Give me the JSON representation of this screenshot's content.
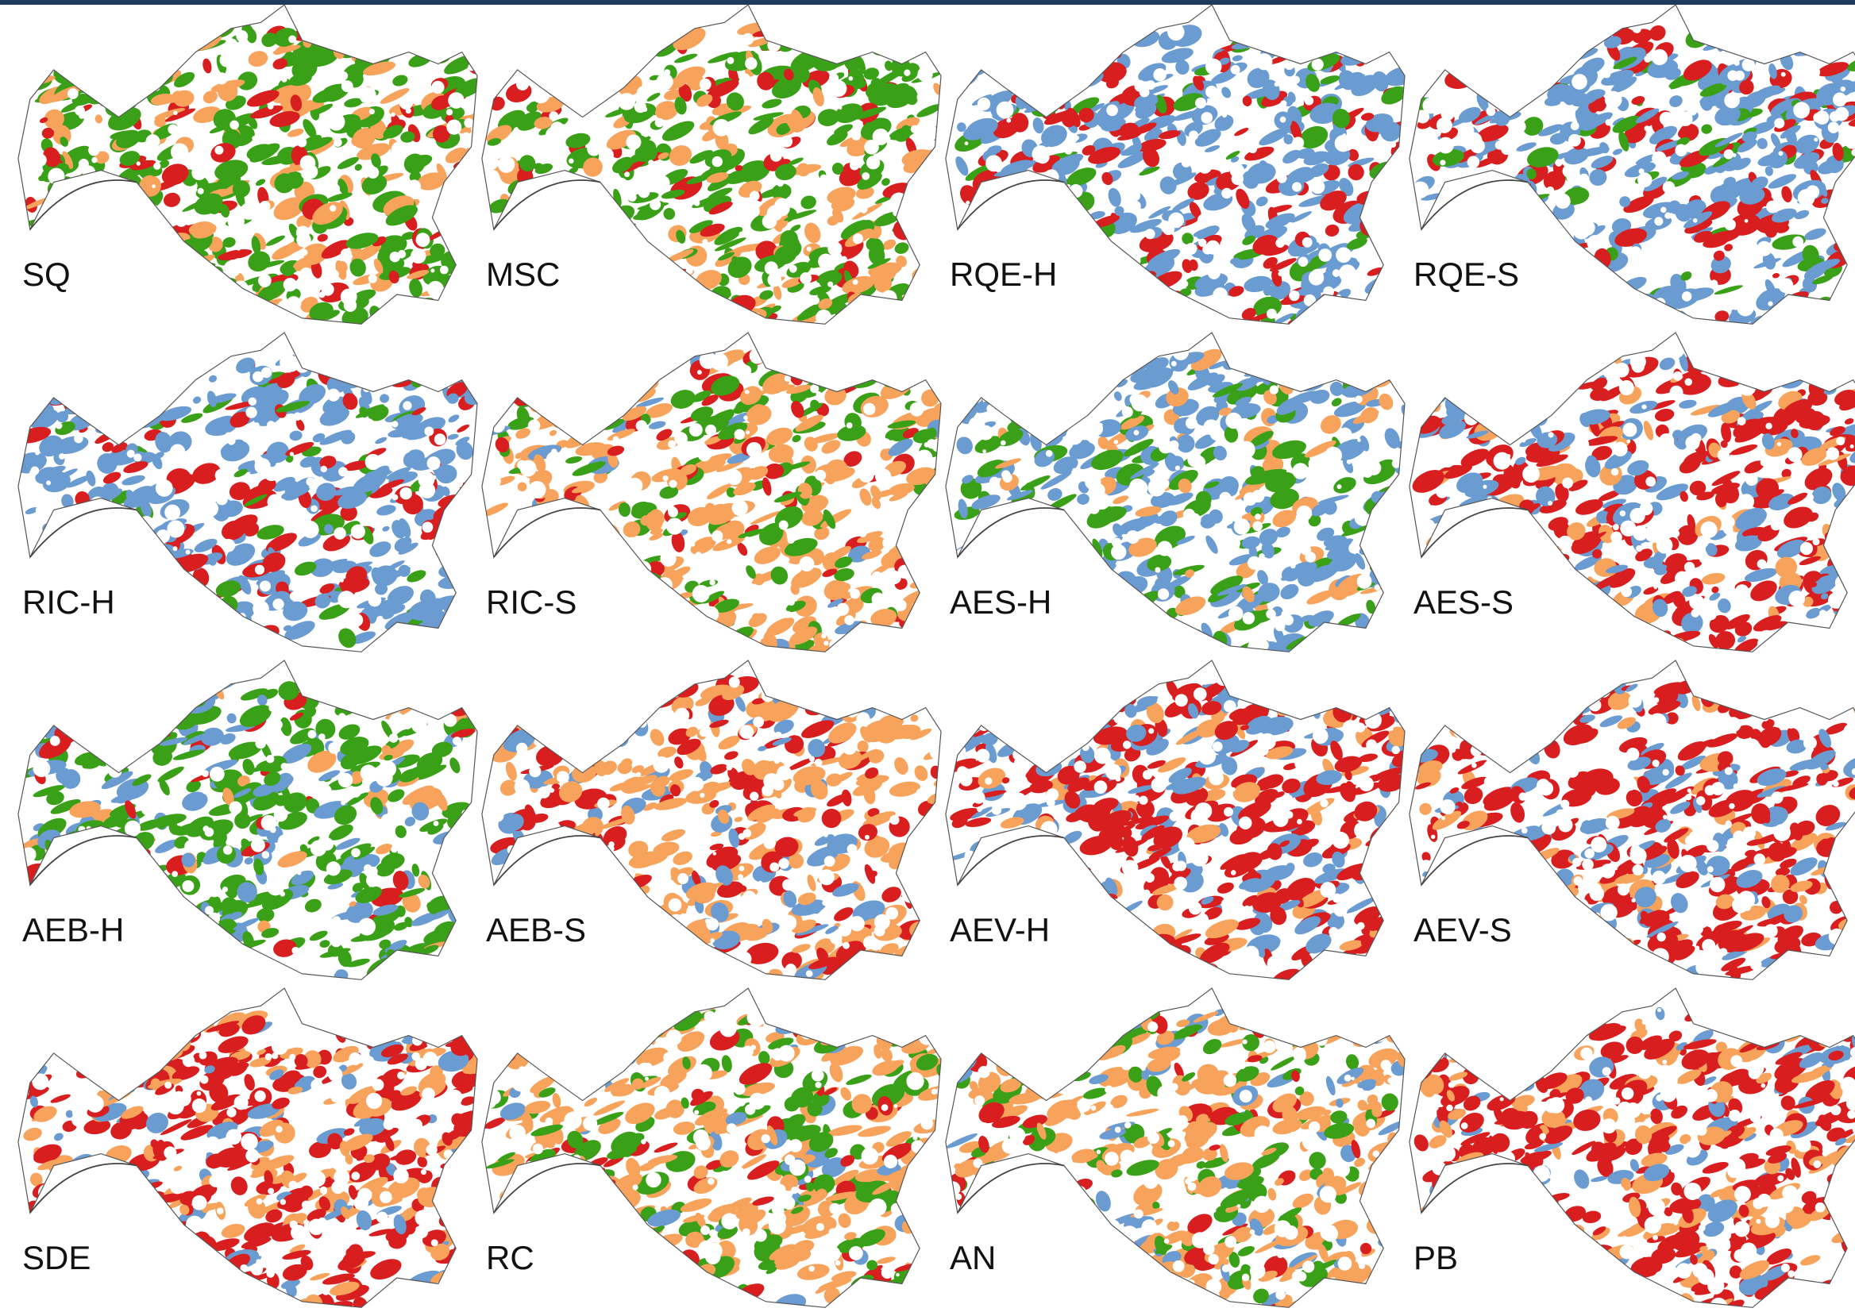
{
  "panels": [
    {
      "label": "SQ",
      "colors": [
        "#3aa017",
        "#f7a35c",
        "#d81e1e"
      ]
    },
    {
      "label": "MSC",
      "colors": [
        "#3aa017",
        "#f7a35c",
        "#d81e1e"
      ]
    },
    {
      "label": "RQE-H",
      "colors": [
        "#6a9bd1",
        "#d81e1e",
        "#3aa017"
      ]
    },
    {
      "label": "RQE-S",
      "colors": [
        "#6a9bd1",
        "#d81e1e",
        "#3aa017"
      ]
    },
    {
      "label": "RIC-H",
      "colors": [
        "#6a9bd1",
        "#d81e1e",
        "#3aa017"
      ]
    },
    {
      "label": "RIC-S",
      "colors": [
        "#f7a35c",
        "#3aa017",
        "#d81e1e",
        "#6a9bd1"
      ]
    },
    {
      "label": "AES-H",
      "colors": [
        "#6a9bd1",
        "#3aa017",
        "#f7a35c"
      ]
    },
    {
      "label": "AES-S",
      "colors": [
        "#d81e1e",
        "#6a9bd1",
        "#f7a35c"
      ]
    },
    {
      "label": "AEB-H",
      "colors": [
        "#3aa017",
        "#6a9bd1",
        "#f7a35c",
        "#d81e1e"
      ]
    },
    {
      "label": "AEB-S",
      "colors": [
        "#f7a35c",
        "#d81e1e",
        "#6a9bd1"
      ]
    },
    {
      "label": "AEV-H",
      "colors": [
        "#d81e1e",
        "#6a9bd1",
        "#f7a35c"
      ]
    },
    {
      "label": "AEV-S",
      "colors": [
        "#d81e1e",
        "#6a9bd1",
        "#f7a35c"
      ]
    },
    {
      "label": "SDE",
      "colors": [
        "#d81e1e",
        "#f7a35c",
        "#6a9bd1"
      ]
    },
    {
      "label": "RC",
      "colors": [
        "#f7a35c",
        "#3aa017",
        "#d81e1e",
        "#6a9bd1"
      ]
    },
    {
      "label": "AN",
      "colors": [
        "#f7a35c",
        "#3aa017",
        "#6a9bd1",
        "#d81e1e"
      ]
    },
    {
      "label": "PB",
      "colors": [
        "#d81e1e",
        "#f7a35c",
        "#6a9bd1"
      ]
    }
  ]
}
